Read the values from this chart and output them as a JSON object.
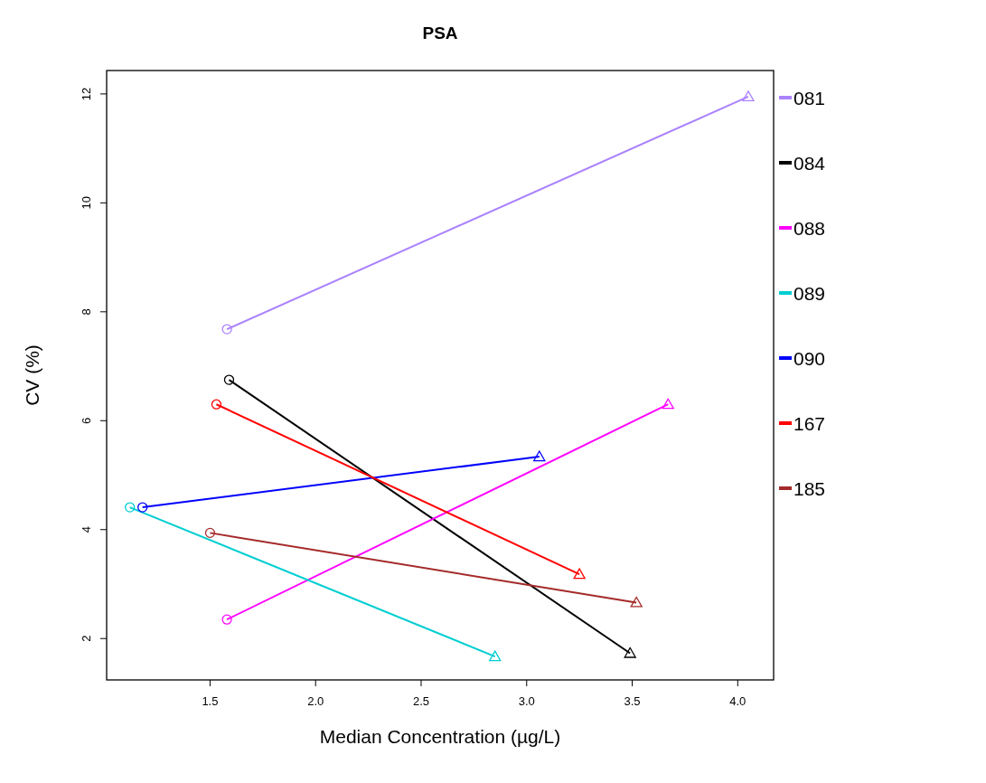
{
  "chart_data": {
    "type": "line",
    "title": "PSA",
    "xlabel": "Median Concentration  (µg/L)",
    "ylabel": "CV (%)",
    "xlim": [
      1.01,
      4.17
    ],
    "ylim": [
      1.24,
      12.43
    ],
    "xticks": [
      {
        "value": 1.5,
        "label": "1.5"
      },
      {
        "value": 2,
        "label": "2.0"
      },
      {
        "value": 2.5,
        "label": "2.5"
      },
      {
        "value": 3,
        "label": "3.0"
      },
      {
        "value": 3.5,
        "label": "3.5"
      },
      {
        "value": 4,
        "label": "4.0"
      }
    ],
    "yticks": [
      2,
      4,
      6,
      8,
      10,
      12
    ],
    "grid": false,
    "legend": "right",
    "marker": "none",
    "line_style": "solid",
    "series": [
      {
        "name": "081",
        "color": "#ab82ff",
        "x": [
          1.58,
          4.05
        ],
        "values": [
          7.68,
          11.95
        ]
      },
      {
        "name": "084",
        "color": "#000000",
        "x": [
          1.59,
          3.49
        ],
        "values": [
          6.75,
          1.73
        ]
      },
      {
        "name": "088",
        "color": "#ff00ff",
        "x": [
          1.58,
          3.67
        ],
        "values": [
          2.35,
          6.3
        ]
      },
      {
        "name": "089",
        "color": "#00ced1",
        "x": [
          1.12,
          2.85
        ],
        "values": [
          4.41,
          1.67
        ]
      },
      {
        "name": "090",
        "color": "#0000ff",
        "x": [
          1.18,
          3.06
        ],
        "values": [
          4.41,
          5.34
        ]
      },
      {
        "name": "167",
        "color": "#ff0000",
        "x": [
          1.53,
          3.25
        ],
        "values": [
          6.3,
          3.18
        ]
      },
      {
        "name": "185",
        "color": "#a52a2a",
        "x": [
          1.5,
          3.52
        ],
        "values": [
          3.94,
          2.66
        ]
      },
      {
        "type": "scatter",
        "marker": "triangle",
        "x": [
          4.05,
          3.49,
          3.67,
          2.85,
          3.06,
          3.25,
          3.52
        ],
        "values": [
          11.95,
          1.73,
          6.3,
          1.67,
          5.34,
          3.18,
          2.66
        ],
        "colors": [
          "#ab82ff",
          "#000000",
          "#ff00ff",
          "#00ced1",
          "#0000ff",
          "#ff0000",
          "#a52a2a"
        ]
      },
      {
        "type": "scatter",
        "marker": "circle",
        "x": [
          1.58,
          1.59,
          1.58,
          1.12,
          1.18,
          1.53,
          1.5
        ],
        "values": [
          7.68,
          6.75,
          2.35,
          4.41,
          4.41,
          6.3,
          3.94
        ],
        "colors": [
          "#ab82ff",
          "#000000",
          "#ff00ff",
          "#00ced1",
          "#0000ff",
          "#ff0000",
          "#a52a2a"
        ]
      }
    ]
  }
}
